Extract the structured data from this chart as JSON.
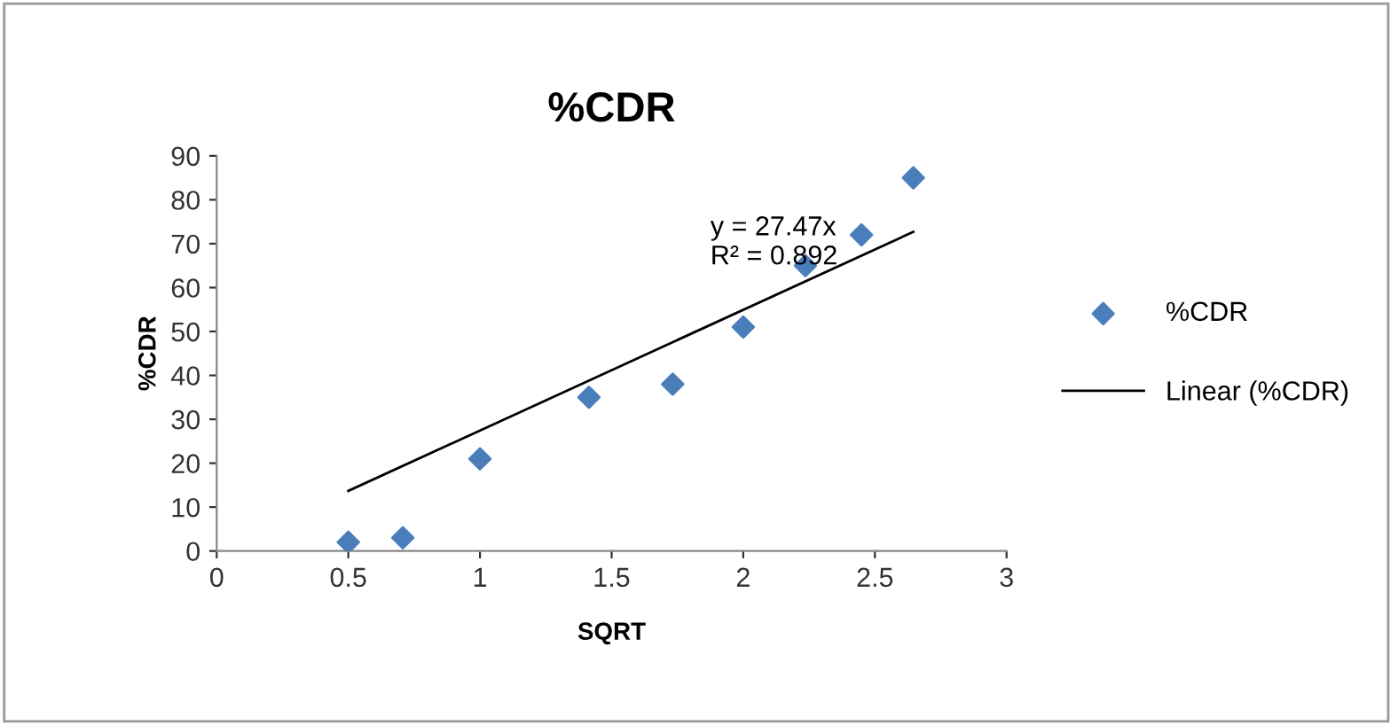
{
  "chart_data": {
    "type": "scatter",
    "title": "%CDR",
    "xlabel": "SQRT",
    "ylabel": "%CDR",
    "xlim": [
      0,
      3
    ],
    "xticks": [
      0,
      0.5,
      1,
      1.5,
      2,
      2.5,
      3
    ],
    "ylim": [
      0,
      90
    ],
    "yticks": [
      0,
      10,
      20,
      30,
      40,
      50,
      60,
      70,
      80,
      90
    ],
    "grid": false,
    "legend": "right",
    "annotations": [
      "y = 27.47x\nR² = 0.892"
    ],
    "series": [
      {
        "name": "%CDR",
        "marker": "diamond",
        "color": "#4a7ebb",
        "x": [
          0.5,
          0.707,
          1,
          1.414,
          1.732,
          2,
          2.236,
          2.449,
          2.646
        ],
        "values": [
          2,
          3,
          21,
          35,
          38,
          51,
          65,
          72,
          85
        ]
      },
      {
        "name": "Linear (%CDR)",
        "type": "line",
        "marker": "none",
        "line_style": "solid",
        "color": "#000000",
        "x": [
          0.5,
          2.646
        ],
        "values": [
          13.7,
          72.7
        ]
      }
    ]
  }
}
